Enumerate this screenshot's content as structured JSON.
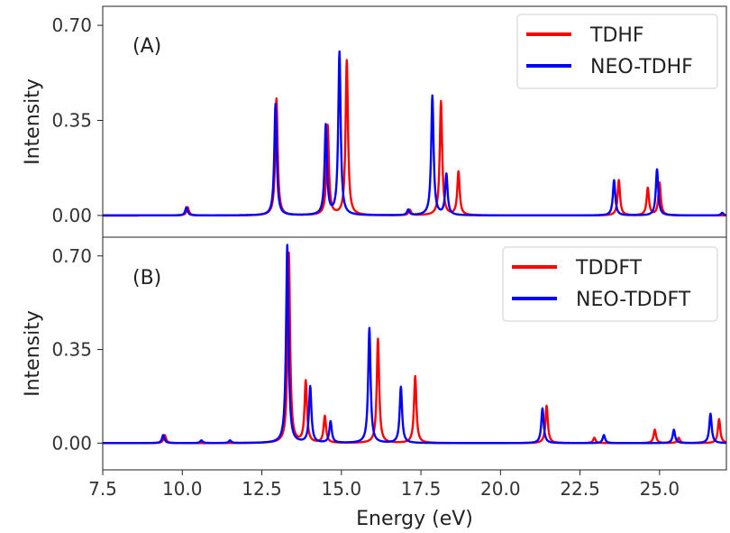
{
  "chart_data": [
    {
      "type": "line",
      "panel_label": "(A)",
      "xlabel": "",
      "ylabel": "Intensity",
      "xlim": [
        7.5,
        27.1
      ],
      "ylim": [
        -0.08,
        0.77
      ],
      "yticks": [
        "0.00",
        "0.35",
        "0.70"
      ],
      "ytick_values": [
        0.0,
        0.35,
        0.7
      ],
      "line_width_hint": "lorentzian",
      "legend_position": "top-right",
      "series": [
        {
          "name": "TDHF",
          "color": "#ff0000",
          "peaks": [
            {
              "x": 10.17,
              "y": 0.03
            },
            {
              "x": 12.96,
              "y": 0.43
            },
            {
              "x": 14.57,
              "y": 0.33
            },
            {
              "x": 15.17,
              "y": 0.57
            },
            {
              "x": 17.15,
              "y": 0.02
            },
            {
              "x": 18.13,
              "y": 0.42
            },
            {
              "x": 18.68,
              "y": 0.16
            },
            {
              "x": 23.72,
              "y": 0.13
            },
            {
              "x": 24.63,
              "y": 0.1
            },
            {
              "x": 25.0,
              "y": 0.12
            }
          ]
        },
        {
          "name": "NEO-TDHF",
          "color": "#0000ff",
          "peaks": [
            {
              "x": 10.13,
              "y": 0.03
            },
            {
              "x": 12.93,
              "y": 0.41
            },
            {
              "x": 14.51,
              "y": 0.33
            },
            {
              "x": 14.94,
              "y": 0.6
            },
            {
              "x": 17.1,
              "y": 0.02
            },
            {
              "x": 17.86,
              "y": 0.44
            },
            {
              "x": 18.3,
              "y": 0.15
            },
            {
              "x": 23.57,
              "y": 0.13
            },
            {
              "x": 24.92,
              "y": 0.17
            },
            {
              "x": 26.97,
              "y": 0.01
            }
          ]
        }
      ]
    },
    {
      "type": "line",
      "panel_label": "(B)",
      "xlabel": "Energy (eV)",
      "ylabel": "Intensity",
      "xlim": [
        7.5,
        27.1
      ],
      "ylim": [
        -0.1,
        0.77
      ],
      "xticks": [
        "7.5",
        "10.0",
        "12.5",
        "15.0",
        "17.5",
        "20.0",
        "22.5",
        "25.0"
      ],
      "xtick_values": [
        7.5,
        10.0,
        12.5,
        15.0,
        17.5,
        20.0,
        22.5,
        25.0
      ],
      "yticks": [
        "0.00",
        "0.35",
        "0.70"
      ],
      "ytick_values": [
        0.0,
        0.35,
        0.7
      ],
      "legend_position": "top-right",
      "series": [
        {
          "name": "TDDFT",
          "color": "#ff0000",
          "peaks": [
            {
              "x": 9.45,
              "y": 0.03
            },
            {
              "x": 13.35,
              "y": 0.71
            },
            {
              "x": 13.88,
              "y": 0.23
            },
            {
              "x": 14.48,
              "y": 0.1
            },
            {
              "x": 16.15,
              "y": 0.39
            },
            {
              "x": 17.32,
              "y": 0.25
            },
            {
              "x": 21.45,
              "y": 0.14
            },
            {
              "x": 22.95,
              "y": 0.02
            },
            {
              "x": 24.85,
              "y": 0.05
            },
            {
              "x": 25.6,
              "y": 0.02
            },
            {
              "x": 26.87,
              "y": 0.09
            }
          ]
        },
        {
          "name": "NEO-TDDFT",
          "color": "#0000ff",
          "peaks": [
            {
              "x": 9.4,
              "y": 0.03
            },
            {
              "x": 10.6,
              "y": 0.01
            },
            {
              "x": 11.5,
              "y": 0.01
            },
            {
              "x": 13.3,
              "y": 0.74
            },
            {
              "x": 14.02,
              "y": 0.21
            },
            {
              "x": 14.66,
              "y": 0.08
            },
            {
              "x": 15.88,
              "y": 0.43
            },
            {
              "x": 16.87,
              "y": 0.21
            },
            {
              "x": 21.32,
              "y": 0.13
            },
            {
              "x": 23.25,
              "y": 0.03
            },
            {
              "x": 25.45,
              "y": 0.05
            },
            {
              "x": 26.6,
              "y": 0.11
            }
          ]
        }
      ]
    }
  ]
}
